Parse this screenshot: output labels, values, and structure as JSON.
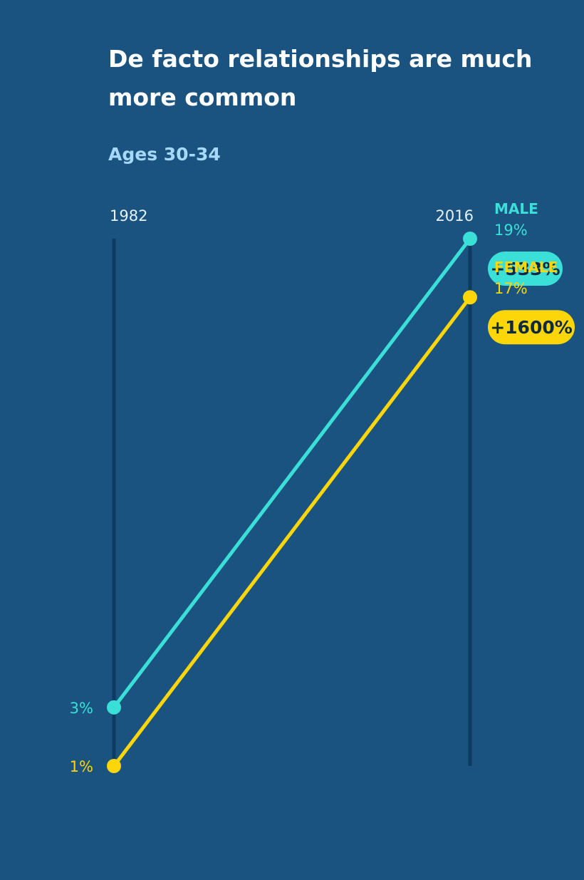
{
  "chart_data": {
    "type": "line",
    "title": "De facto relationships are much more common",
    "subtitle": "Ages 30-34",
    "x": [
      "1982",
      "2016"
    ],
    "unit": "%",
    "series": [
      {
        "name": "MALE",
        "values": [
          3,
          19
        ],
        "start_label": "3%",
        "end_label": "19%",
        "change_label": "+533%",
        "color": "#3ae0d8"
      },
      {
        "name": "FEMALE",
        "values": [
          1,
          17
        ],
        "start_label": "1%",
        "end_label": "17%",
        "change_label": "+1600%",
        "color": "#fdd60a"
      }
    ],
    "background": "#1a5380",
    "axis_color": "#0d3a60",
    "grid": false,
    "legend": "none"
  }
}
